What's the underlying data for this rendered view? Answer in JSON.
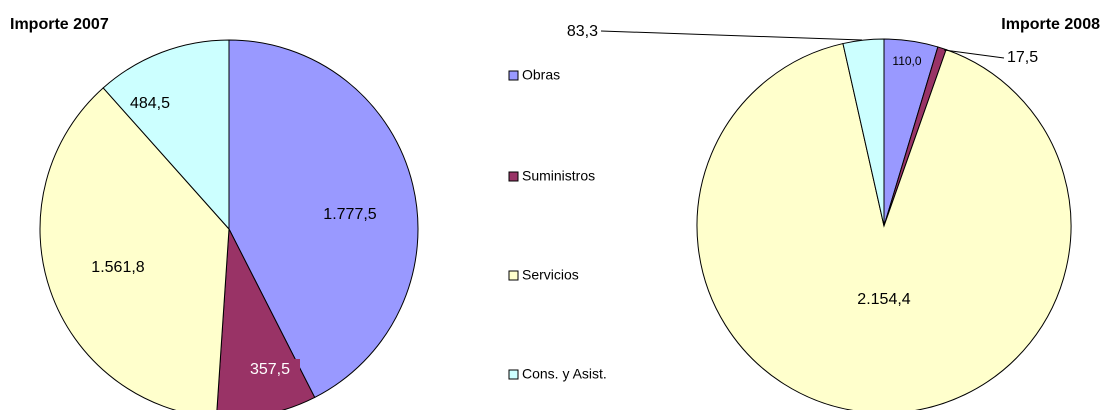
{
  "chart_data": [
    {
      "type": "pie",
      "title": "Importe 2007",
      "categories": [
        "Obras",
        "Suministros",
        "Servicios",
        "Cons. y Asist."
      ],
      "values": [
        1777.5,
        357.5,
        1561.8,
        484.5
      ],
      "value_labels": [
        "1.777,5",
        "357,5",
        "1.561,8",
        "484,5"
      ],
      "colors": [
        "#9999ff",
        "#993366",
        "#ffffcc",
        "#ccffff"
      ]
    },
    {
      "type": "pie",
      "title": "Importe 2008",
      "categories": [
        "Obras",
        "Suministros",
        "Servicios",
        "Cons. y Asist."
      ],
      "values": [
        110.0,
        17.5,
        2154.4,
        83.3
      ],
      "value_labels": [
        "110,0",
        "17,5",
        "2.154,4",
        "83,3"
      ],
      "colors": [
        "#9999ff",
        "#993366",
        "#ffffcc",
        "#ccffff"
      ]
    }
  ]
}
